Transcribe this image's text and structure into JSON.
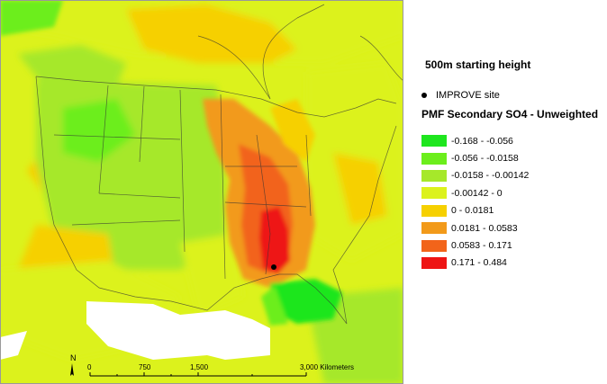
{
  "legend": {
    "heading": "500m starting height",
    "site_label": "IMPROVE site",
    "layer_title": "PMF Secondary SO4 - Unweighted",
    "classes": [
      {
        "label": "-0.168 - -0.056",
        "color": "#1ee61e"
      },
      {
        "label": "-0.056 - -0.0158",
        "color": "#6cee1c"
      },
      {
        "label": "-0.0158 - -0.00142",
        "color": "#a6e82a"
      },
      {
        "label": "-0.00142 - 0",
        "color": "#dcf21c"
      },
      {
        "label": "0 - 0.0181",
        "color": "#f6d000"
      },
      {
        "label": "0.0181 - 0.0583",
        "color": "#f29a1a"
      },
      {
        "label": "0.0583 - 0.171",
        "color": "#f2641a"
      },
      {
        "label": "0.171 - 0.484",
        "color": "#ee1414"
      }
    ]
  },
  "scalebar": {
    "ticks": [
      "0",
      "750",
      "1,500",
      "3,000 Kilometers"
    ],
    "north_label": "N"
  }
}
